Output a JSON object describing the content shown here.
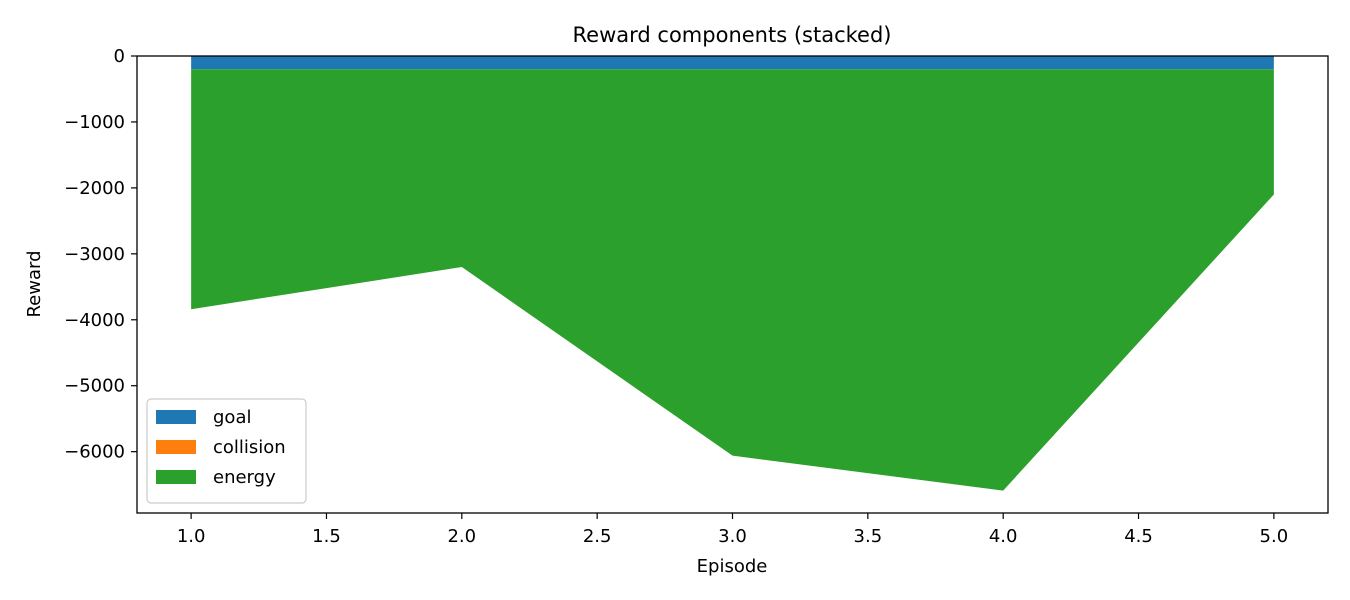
{
  "chart_data": {
    "type": "area",
    "stacked": true,
    "title": "Reward components (stacked)",
    "xlabel": "Episode",
    "ylabel": "Reward",
    "x": [
      1,
      2,
      3,
      4,
      5
    ],
    "xlim": [
      0.8,
      5.2
    ],
    "ylim": [
      -6930,
      0
    ],
    "x_ticks": [
      "1.0",
      "1.5",
      "2.0",
      "2.5",
      "3.0",
      "3.5",
      "4.0",
      "4.5",
      "5.0"
    ],
    "y_ticks": [
      "0",
      "−1000",
      "−2000",
      "−3000",
      "−4000",
      "−5000",
      "−6000"
    ],
    "grid": false,
    "legend_position": "lower-left",
    "series": [
      {
        "name": "goal",
        "color": "#1f77b4",
        "values": [
          -200,
          -200,
          -200,
          -200,
          -200
        ]
      },
      {
        "name": "collision",
        "color": "#ff7f0e",
        "values": [
          0,
          0,
          0,
          0,
          0
        ]
      },
      {
        "name": "energy",
        "color": "#2ca02c",
        "values": [
          -3640,
          -3000,
          -5860,
          -6390,
          -1900
        ]
      }
    ]
  }
}
